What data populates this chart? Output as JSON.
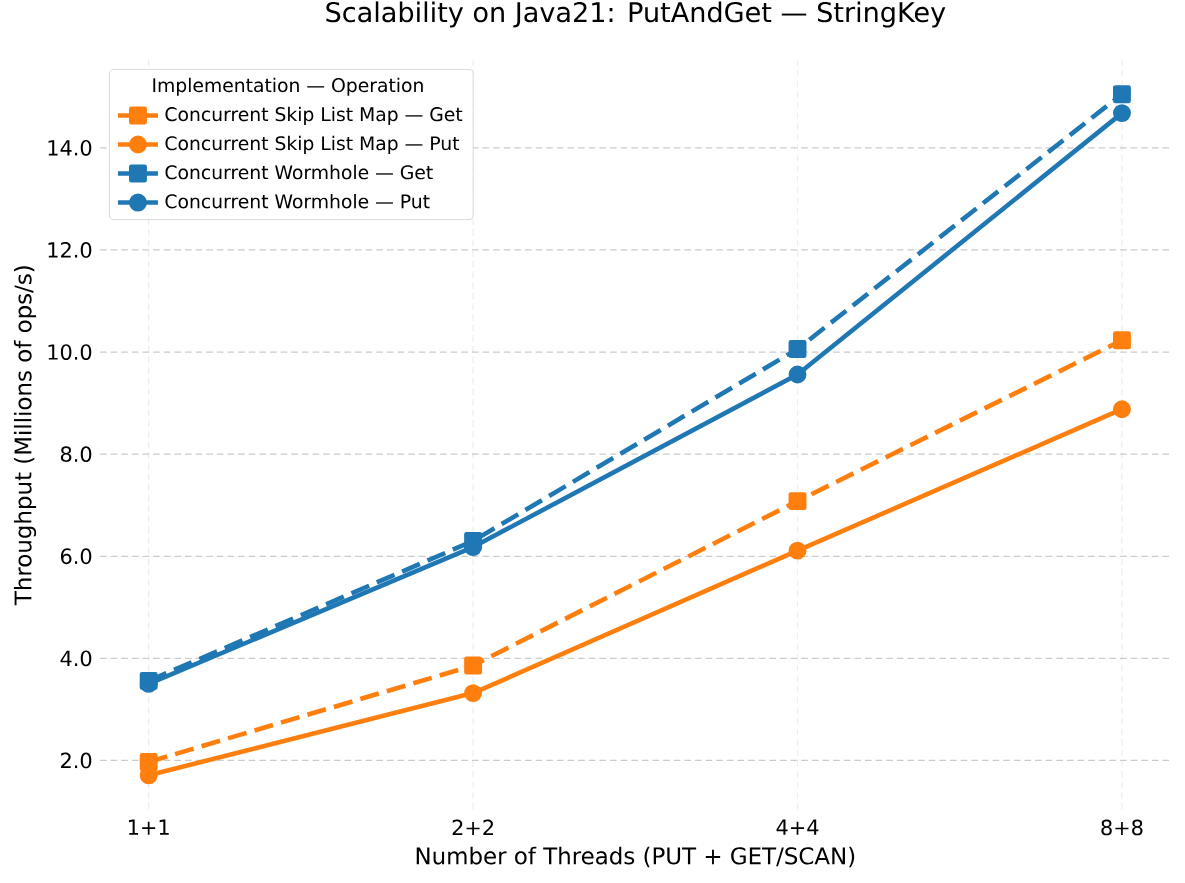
{
  "chart_data": {
    "type": "line",
    "title": "Scalability on Java21: PutAndGet — StringKey",
    "xlabel": "Number of Threads (PUT + GET/SCAN)",
    "ylabel": "Throughput (Millions of ops/s)",
    "legend_title": "Implementation — Operation",
    "categories": [
      "1+1",
      "2+2",
      "4+4",
      "8+8"
    ],
    "ylim": [
      1.04,
      15.72
    ],
    "yticks": [
      {
        "value": 2,
        "label": "2.0"
      },
      {
        "value": 4,
        "label": "4.0"
      },
      {
        "value": 6,
        "label": "6.0"
      },
      {
        "value": 8,
        "label": "8.0"
      },
      {
        "value": 10,
        "label": "10.0"
      },
      {
        "value": 12,
        "label": "12.0"
      },
      {
        "value": 14,
        "label": "14.0"
      }
    ],
    "grid": true,
    "legend": "top left",
    "series": [
      {
        "name": "Concurrent Skip List Map — Get",
        "color": "#ff7f0e",
        "marker": "square",
        "line_style": "dashed",
        "values": [
          1.97,
          3.86,
          7.08,
          10.23
        ]
      },
      {
        "name": "Concurrent Skip List Map — Put",
        "color": "#ff7f0e",
        "marker": "circle",
        "line_style": "solid",
        "values": [
          1.71,
          3.32,
          6.11,
          8.88
        ]
      },
      {
        "name": "Concurrent Wormhole — Get",
        "color": "#1f77b4",
        "marker": "square",
        "line_style": "dashed",
        "values": [
          3.56,
          6.3,
          10.06,
          15.05
        ]
      },
      {
        "name": "Concurrent Wormhole — Put",
        "color": "#1f77b4",
        "marker": "circle",
        "line_style": "solid",
        "values": [
          3.5,
          6.18,
          9.56,
          14.68
        ]
      }
    ]
  }
}
